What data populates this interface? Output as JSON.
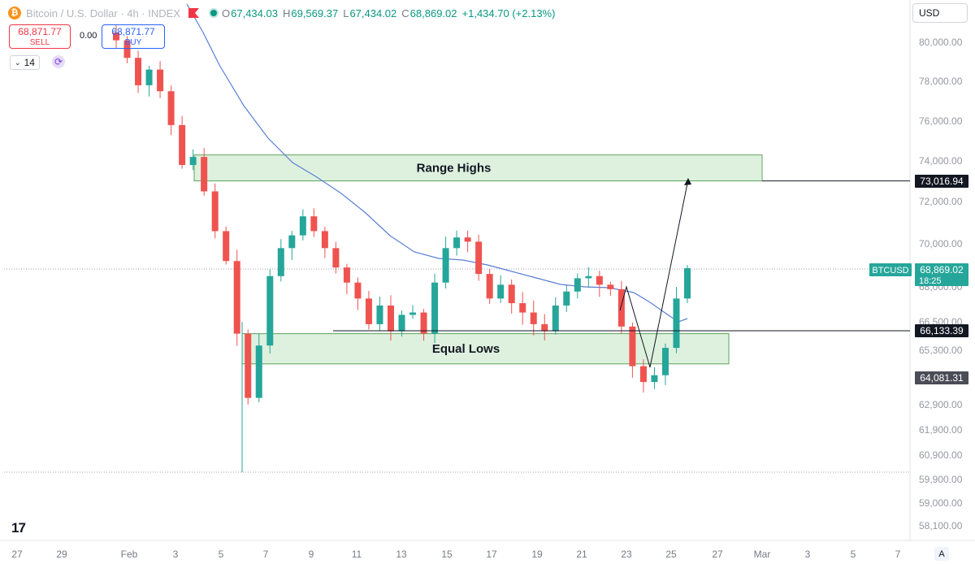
{
  "header": {
    "logo_glyph": "₿",
    "title": "Bitcoin / U.S. Dollar · 4h · INDEX",
    "ohlc": [
      {
        "key": "O",
        "value": "67,434.03"
      },
      {
        "key": "H",
        "value": "69,569.37"
      },
      {
        "key": "L",
        "value": "67,434.02"
      },
      {
        "key": "C",
        "value": "68,869.02"
      }
    ],
    "change": "+1,434.70 (+2.13%)"
  },
  "trade": {
    "sell_price": "68,871.77",
    "sell_label": "SELL",
    "spread": "0.00",
    "buy_price": "68,871.77",
    "buy_label": "BUY"
  },
  "indicator": {
    "count": "14",
    "chevron": "⌄",
    "sync_glyph": "⟳"
  },
  "currency": "USD",
  "logo": "17",
  "auto_label": "A",
  "colors": {
    "up": "#26a69a",
    "down": "#ef5350",
    "ma": "#5b7fd6",
    "zone_fill": "#d8eed8",
    "zone_stroke": "#5fa35f"
  },
  "chart_data": {
    "type": "candlestick",
    "timeframe": "4h",
    "y_axis": {
      "ticks": [
        80000,
        78000,
        76000,
        74000,
        72000,
        70000,
        68000,
        66500,
        65300,
        62900,
        61900,
        60900,
        59900,
        59000,
        58100
      ],
      "tick_labels": [
        "80,000.00",
        "78,000.00",
        "76,000.00",
        "74,000.00",
        "72,000.00",
        "70,000.00",
        "68,000.00",
        "66,500.00",
        "65,300.00",
        "62,900.00",
        "61,900.00",
        "60,900.00",
        "59,900.00",
        "59,000.00",
        "58,100.00"
      ],
      "scale": "log"
    },
    "x_axis": {
      "labels": [
        "27",
        "29",
        "Feb",
        "3",
        "5",
        "7",
        "9",
        "11",
        "13",
        "15",
        "17",
        "19",
        "21",
        "23",
        "25",
        "27",
        "Mar",
        "3",
        "5",
        "7"
      ]
    },
    "series": [
      {
        "name": "BTCUSD",
        "kind": "candles",
        "values_close": [
          80100,
          79200,
          77800,
          78600,
          77500,
          75800,
          73800,
          74200,
          72500,
          70600,
          69200,
          66000,
          63200,
          65500,
          68500,
          69800,
          70400,
          71300,
          70600,
          69800,
          68900,
          68200,
          67500,
          66400,
          67200,
          66100,
          66800,
          66900,
          66000,
          68200,
          69800,
          70300,
          70100,
          68600,
          67500,
          68100,
          67300,
          66900,
          66400,
          66100,
          67200,
          67800,
          68400,
          68500,
          68100,
          67900,
          66300,
          64600,
          63900,
          64200,
          65400,
          67500,
          68870
        ]
      },
      {
        "name": "Moving Average",
        "kind": "line"
      }
    ],
    "zones": [
      {
        "label": "Range Highs",
        "low": 73016.94,
        "high": 74300
      },
      {
        "label": "Equal Lows",
        "low": 64700,
        "high": 66000
      }
    ],
    "levels": [
      {
        "value": 73016.94,
        "label": "73,016.94"
      },
      {
        "value": 66133.39,
        "label": "66,133.39"
      },
      {
        "value": 64081.31,
        "label": "64,081.31"
      }
    ],
    "last_price": {
      "symbol": "BTCUSD",
      "value": "68,869.02",
      "countdown": "18:25"
    }
  }
}
